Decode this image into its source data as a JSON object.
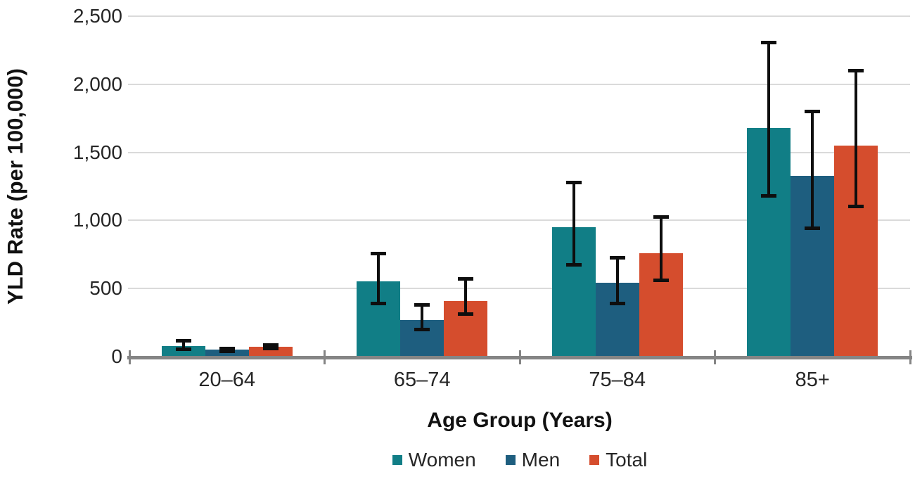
{
  "chart_data": {
    "type": "bar",
    "title": "",
    "xlabel": "Age Group (Years)",
    "ylabel": "YLD Rate (per 100,000)",
    "categories": [
      "20–64",
      "65–74",
      "75–84",
      "85+"
    ],
    "series": [
      {
        "name": "Women",
        "color": "#117E86",
        "values": [
          80,
          555,
          950,
          1680
        ],
        "ci_low": [
          40,
          375,
          660,
          1165
        ],
        "ci_high": [
          130,
          770,
          1290,
          2320
        ]
      },
      {
        "name": "Men",
        "color": "#1E5E7F",
        "values": [
          50,
          270,
          540,
          1330
        ],
        "ci_low": [
          25,
          185,
          375,
          930
        ],
        "ci_high": [
          70,
          395,
          740,
          1815
        ]
      },
      {
        "name": "Total",
        "color": "#D54D2D",
        "values": [
          70,
          410,
          760,
          1550
        ],
        "ci_low": [
          45,
          300,
          550,
          1090
        ],
        "ci_high": [
          100,
          585,
          1040,
          2115
        ]
      }
    ],
    "ylim": [
      0,
      2500
    ],
    "yticks": [
      0,
      500,
      1000,
      1500,
      2000,
      2500
    ],
    "ytick_labels": [
      "0",
      "500",
      "1,000",
      "1,500",
      "2,000",
      "2,500"
    ],
    "grid": true,
    "error_bars": true,
    "legend_position": "bottom",
    "colors": {
      "gridline": "#dadada",
      "axis": "#858585",
      "error_bar": "#0e0e0e",
      "text": "#262626"
    }
  }
}
